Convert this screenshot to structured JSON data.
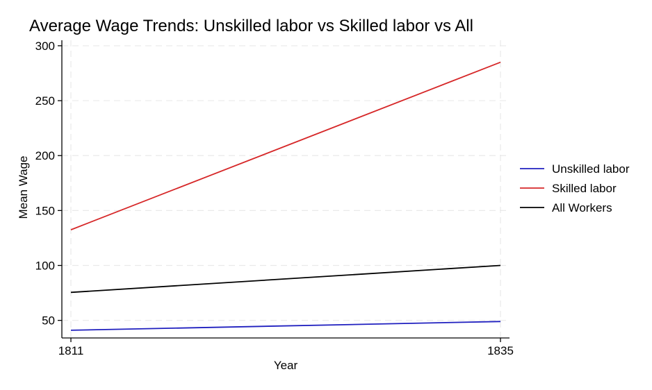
{
  "chart_data": {
    "type": "line",
    "title": "Average Wage Trends: Unskilled labor vs Skilled labor vs All",
    "xlabel": "Year",
    "ylabel": "Mean Wage",
    "x": [
      1811,
      1835
    ],
    "xlim": [
      1811,
      1835
    ],
    "ylim": [
      34,
      305
    ],
    "yticks": [
      50,
      100,
      150,
      200,
      250,
      300
    ],
    "xticks": [
      1811,
      1835
    ],
    "grid": true,
    "legend_position": "right",
    "series": [
      {
        "name": "Unskilled labor",
        "color": "#1f1fbf",
        "values": [
          41,
          49
        ]
      },
      {
        "name": "Skilled labor",
        "color": "#d62728",
        "values": [
          132.5,
          285
        ]
      },
      {
        "name": "All Workers",
        "color": "#000000",
        "values": [
          75.5,
          100
        ]
      }
    ]
  }
}
